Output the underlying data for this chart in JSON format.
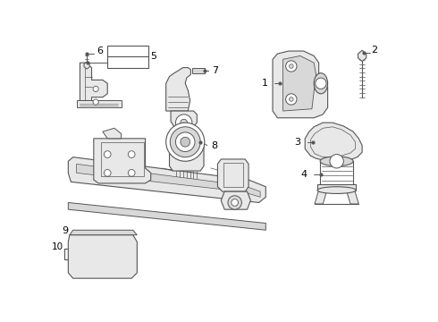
{
  "background_color": "#ffffff",
  "line_color": "#555555",
  "label_color": "#000000",
  "fig_w": 4.9,
  "fig_h": 3.6,
  "dpi": 100
}
